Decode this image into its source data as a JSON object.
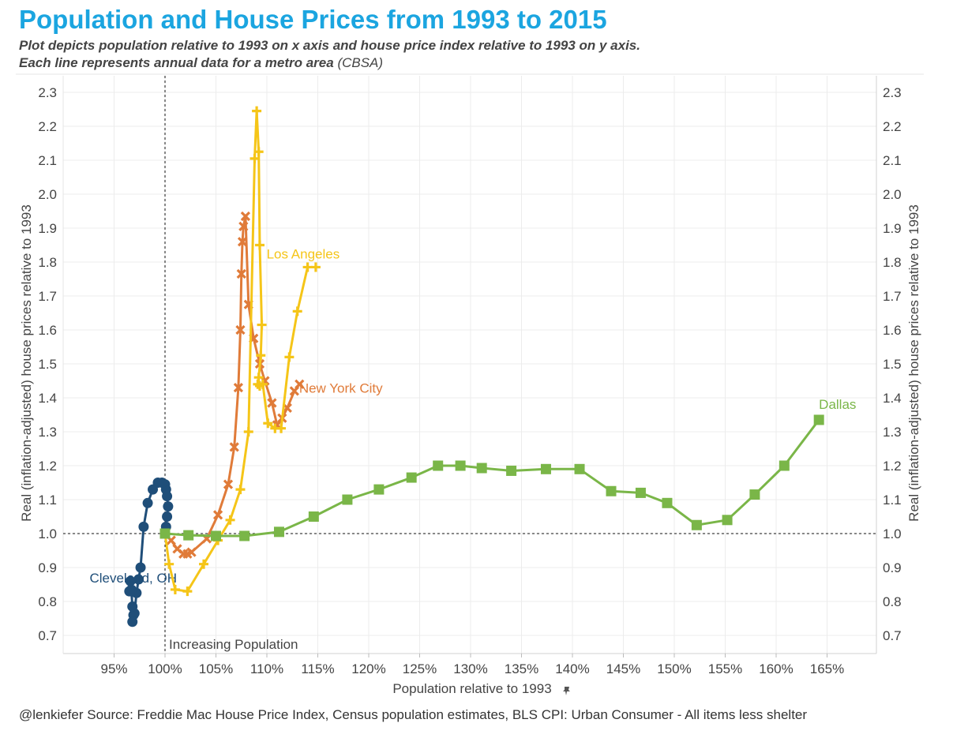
{
  "title": "Population and House Prices from 1993 to 2015",
  "subtitle_line1": "Plot depicts population relative to 1993 on x axis and house price index relative to 1993 on y axis.",
  "subtitle_line2_bold": "Each line represents annual data for a metro area",
  "subtitle_line2_light": "(CBSA)",
  "source": "@lenkiefer Source: Freddie Mac House Price Index, Census population estimates, BLS CPI: Urban Consumer - All items less shelter",
  "pin_icon": "pin-icon",
  "chart_data": {
    "type": "line",
    "xlabel": "Population relative to 1993",
    "ylabel": "Real (inflation-adjusted) house prices relative to 1993",
    "ylabel_right": "Real (inflation-adjusted) house prices relative to 1993",
    "xlim": [
      0.9,
      1.7
    ],
    "ylim": [
      0.65,
      2.33
    ],
    "x_ticks": [
      0.95,
      1.0,
      1.05,
      1.1,
      1.15,
      1.2,
      1.25,
      1.3,
      1.35,
      1.4,
      1.45,
      1.5,
      1.55,
      1.6,
      1.65
    ],
    "x_tick_labels": [
      "95%",
      "100%",
      "105%",
      "110%",
      "115%",
      "120%",
      "125%",
      "130%",
      "135%",
      "140%",
      "145%",
      "150%",
      "155%",
      "160%",
      "165%"
    ],
    "y_ticks": [
      0.7,
      0.8,
      0.9,
      1.0,
      1.1,
      1.2,
      1.3,
      1.4,
      1.5,
      1.6,
      1.7,
      1.8,
      1.9,
      2.0,
      2.1,
      2.2,
      2.3
    ],
    "y_tick_labels": [
      "0.7",
      "0.8",
      "0.9",
      "1.0",
      "1.1",
      "1.2",
      "1.3",
      "1.4",
      "1.5",
      "1.6",
      "1.7",
      "1.8",
      "1.9",
      "2.0",
      "2.1",
      "2.2",
      "2.3"
    ],
    "reference_lines": {
      "x": 1.0,
      "y": 1.0
    },
    "reference_label": "Increasing Population",
    "grid": true,
    "series": [
      {
        "name": "Cleveland, OH",
        "color": "#1f4e79",
        "marker": "circle",
        "x": [
          1.0,
          1.001,
          1.002,
          1.003,
          1.002,
          1.001,
          1.0,
          0.997,
          0.993,
          0.988,
          0.983,
          0.979,
          0.976,
          0.974,
          0.972,
          0.97,
          0.969,
          0.968,
          0.968,
          0.967,
          0.967,
          0.966,
          0.965
        ],
        "y": [
          1.0,
          1.02,
          1.05,
          1.08,
          1.11,
          1.13,
          1.145,
          1.15,
          1.15,
          1.13,
          1.09,
          1.02,
          0.9,
          0.865,
          0.825,
          0.765,
          0.76,
          0.74,
          0.785,
          0.83,
          0.835,
          0.86,
          0.83
        ]
      },
      {
        "name": "New York City",
        "color": "#e07b39",
        "marker": "x",
        "x": [
          1.0,
          1.006,
          1.012,
          1.018,
          1.022,
          1.026,
          1.041,
          1.052,
          1.062,
          1.068,
          1.072,
          1.074,
          1.075,
          1.076,
          1.077,
          1.079,
          1.082,
          1.087,
          1.093,
          1.098,
          1.105,
          1.11,
          1.115,
          1.12,
          1.127,
          1.132
        ],
        "y": [
          1.0,
          0.98,
          0.955,
          0.94,
          0.94,
          0.945,
          0.985,
          1.055,
          1.145,
          1.255,
          1.43,
          1.6,
          1.765,
          1.86,
          1.905,
          1.935,
          1.675,
          1.575,
          1.5,
          1.45,
          1.385,
          1.32,
          1.34,
          1.37,
          1.42,
          1.44
        ]
      },
      {
        "name": "Los Angeles",
        "color": "#f5c518",
        "marker": "plus",
        "x": [
          1.0,
          1.004,
          1.01,
          1.022,
          1.038,
          1.052,
          1.064,
          1.074,
          1.082,
          1.088,
          1.09,
          1.092,
          1.093,
          1.095,
          1.094,
          1.092,
          1.091,
          1.093,
          1.096,
          1.101,
          1.108,
          1.114,
          1.122,
          1.13,
          1.14,
          1.148
        ],
        "y": [
          1.0,
          0.91,
          0.835,
          0.83,
          0.91,
          0.98,
          1.04,
          1.13,
          1.3,
          2.105,
          2.245,
          2.125,
          1.85,
          1.615,
          1.525,
          1.46,
          1.44,
          1.435,
          1.44,
          1.325,
          1.31,
          1.31,
          1.52,
          1.655,
          1.785,
          1.785
        ]
      },
      {
        "name": "Dallas",
        "color": "#7ab648",
        "marker": "square",
        "x": [
          1.0,
          1.023,
          1.05,
          1.078,
          1.112,
          1.146,
          1.179,
          1.21,
          1.242,
          1.268,
          1.29,
          1.311,
          1.34,
          1.374,
          1.407,
          1.438,
          1.467,
          1.493,
          1.522,
          1.552,
          1.579,
          1.608,
          1.642
        ],
        "y": [
          1.0,
          0.995,
          0.993,
          0.993,
          1.005,
          1.05,
          1.1,
          1.13,
          1.165,
          1.2,
          1.2,
          1.193,
          1.185,
          1.19,
          1.19,
          1.125,
          1.12,
          1.09,
          1.025,
          1.04,
          1.115,
          1.2,
          1.335
        ]
      }
    ]
  }
}
